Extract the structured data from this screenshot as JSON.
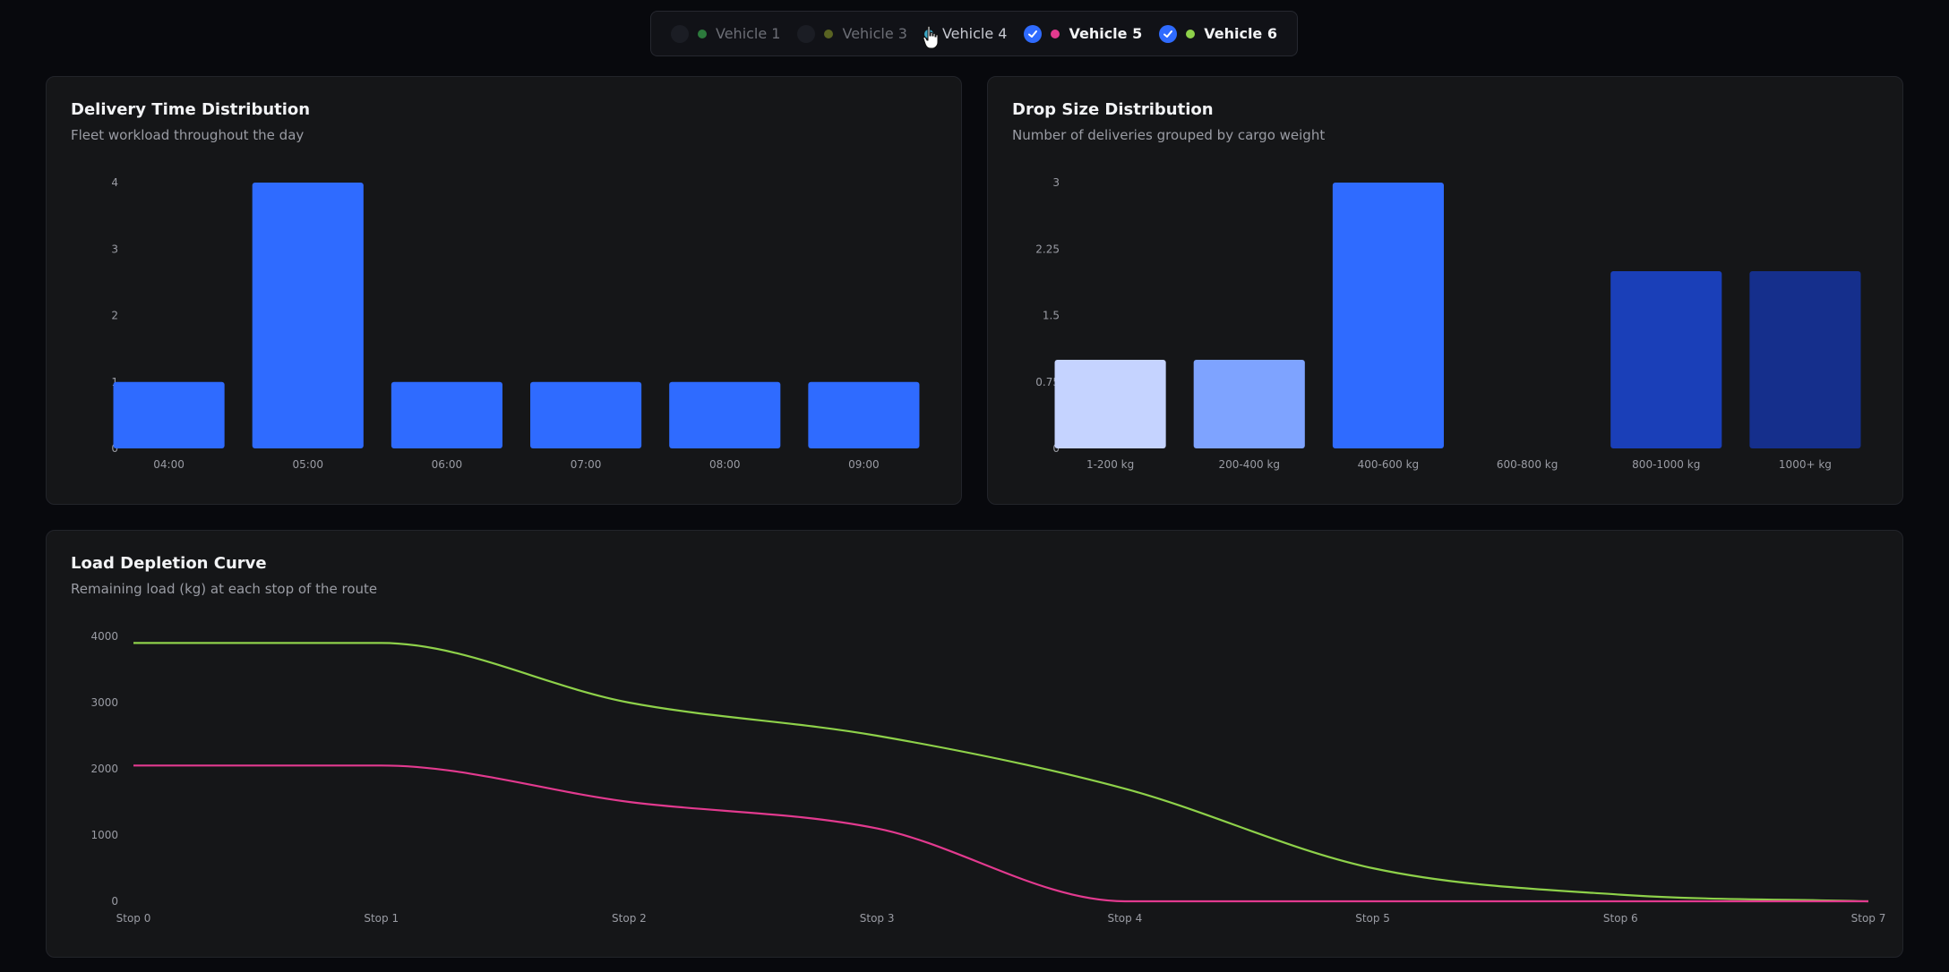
{
  "filters": [
    {
      "label": "Vehicle 1",
      "state": "off",
      "color": "#3fbf55",
      "icon": "check-icon"
    },
    {
      "label": "Vehicle 3",
      "state": "off",
      "color": "#8a9a2a",
      "icon": "check-icon"
    },
    {
      "label": "Vehicle 4",
      "state": "partial",
      "color": "#3aa6c4",
      "icon": "none"
    },
    {
      "label": "Vehicle 5",
      "state": "on",
      "color": "#e23a8f",
      "icon": "check-icon"
    },
    {
      "label": "Vehicle 6",
      "state": "on",
      "color": "#8ed14a",
      "icon": "check-icon"
    }
  ],
  "cards": {
    "delivery": {
      "title": "Delivery Time Distribution",
      "subtitle": "Fleet workload throughout the day"
    },
    "drop": {
      "title": "Drop Size Distribution",
      "subtitle": "Number of deliveries grouped by cargo weight"
    },
    "load": {
      "title": "Load Depletion Curve",
      "subtitle": "Remaining load (kg) at each stop of the route"
    }
  },
  "chart_data": [
    {
      "id": "delivery",
      "type": "bar",
      "categories": [
        "04:00",
        "05:00",
        "06:00",
        "07:00",
        "08:00",
        "09:00"
      ],
      "values": [
        1,
        4,
        1,
        1,
        1,
        1
      ],
      "ylim": [
        0,
        4
      ],
      "yticks": [
        "0",
        "1",
        "2",
        "3",
        "4"
      ],
      "colors": [
        "#2f6bff"
      ],
      "grid": false
    },
    {
      "id": "drop",
      "type": "bar",
      "categories": [
        "1-200 kg",
        "200-400 kg",
        "400-600 kg",
        "600-800 kg",
        "800-1000 kg",
        "1000+ kg"
      ],
      "values": [
        1,
        1,
        3,
        0,
        2,
        2
      ],
      "ylim": [
        0,
        3
      ],
      "yticks": [
        "0",
        "0.75",
        "1.5",
        "2.25",
        "3"
      ],
      "colors": [
        "#c5d3ff",
        "#7ea3ff",
        "#2f6bff",
        "#1f4fd6",
        "#1a3fb8",
        "#152f8c"
      ],
      "grid": false
    },
    {
      "id": "load",
      "type": "line",
      "categories": [
        "Stop 0",
        "Stop 1",
        "Stop 2",
        "Stop 3",
        "Stop 4",
        "Stop 5",
        "Stop 6",
        "Stop 7"
      ],
      "series": [
        {
          "color": "#8ed14a",
          "values": [
            3900,
            3900,
            3000,
            2500,
            1700,
            500,
            100,
            0
          ]
        },
        {
          "color": "#e23a8f",
          "values": [
            2050,
            2050,
            1500,
            1100,
            0,
            0,
            0,
            0
          ]
        }
      ],
      "ylim": [
        0,
        4000
      ],
      "yticks": [
        "0",
        "1000",
        "2000",
        "3000",
        "4000"
      ],
      "grid": false
    }
  ]
}
